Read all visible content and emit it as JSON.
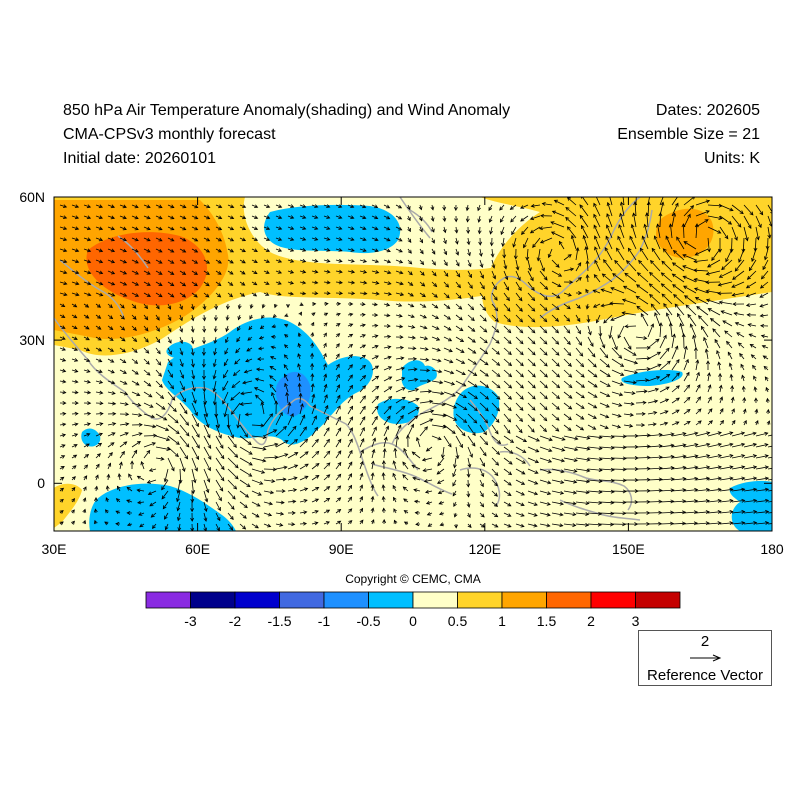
{
  "header": {
    "title": "850 hPa Air Temperature Anomaly(shading) and Wind Anomaly",
    "subtitle": "CMA-CPSv3 monthly forecast",
    "initial_date": "Initial date: 20260101",
    "dates": "Dates: 202605",
    "ensemble": "Ensemble Size = 21",
    "units": "Units: K"
  },
  "map": {
    "lon_range": [
      30,
      180
    ],
    "lat_range": [
      -10,
      60
    ],
    "x_ticks": [
      "30E",
      "60E",
      "90E",
      "120E",
      "150E",
      "180"
    ],
    "y_ticks": [
      "60N",
      "30N",
      "0"
    ],
    "coastline_color": "#aaaaaa"
  },
  "colorbar": {
    "colors": [
      "#8a2be2",
      "#00008b",
      "#0000cd",
      "#4169e1",
      "#1e90ff",
      "#00bfff",
      "#ffffc8",
      "#ffd42a",
      "#ffa500",
      "#ff6600",
      "#ff0000",
      "#c40000"
    ],
    "labels": [
      "-3",
      "-2",
      "-1.5",
      "-1",
      "-0.5",
      "0",
      "0.5",
      "1",
      "1.5",
      "2",
      "3"
    ]
  },
  "copyright": "Copyright © CEMC, CMA",
  "reference_vector": {
    "magnitude": "2",
    "label": "Reference Vector"
  }
}
